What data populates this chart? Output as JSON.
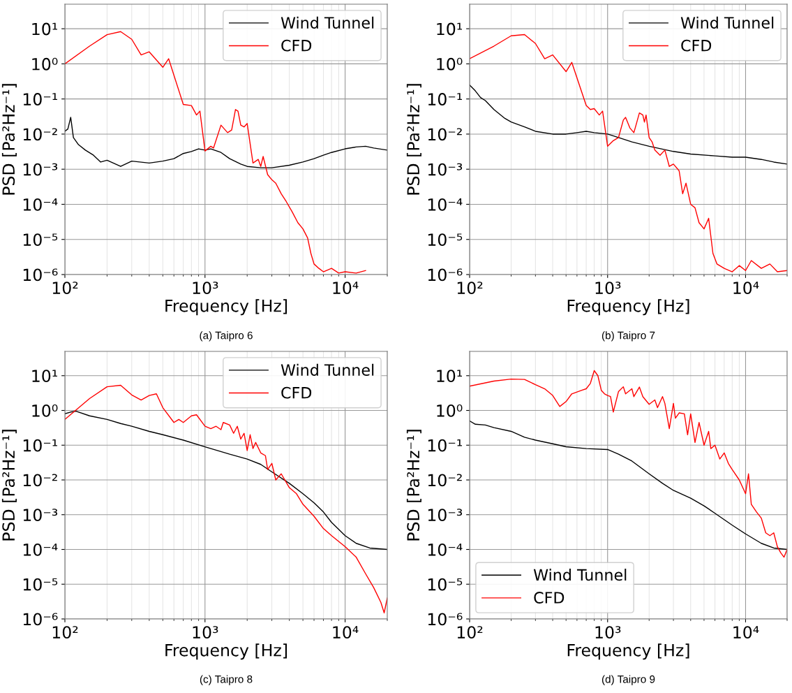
{
  "chart_data": [
    {
      "type": "line",
      "title": "(a) Taipro 6",
      "xlabel": "Frequency [Hz]",
      "ylabel": "PSD [Pa²Hz⁻¹]",
      "log": "xy",
      "grid": true,
      "legend": "top right",
      "xlim": [
        100,
        20000
      ],
      "ylim": [
        1e-06,
        50
      ],
      "xticks": [
        {
          "value": 100,
          "label": "10²"
        },
        {
          "value": 1000,
          "label": "10³"
        },
        {
          "value": 10000,
          "label": "10⁴"
        }
      ],
      "yticks": [
        {
          "value": 1e-06,
          "label": "10⁻⁶"
        },
        {
          "value": 1e-05,
          "label": "10⁻⁵"
        },
        {
          "value": 0.0001,
          "label": "10⁻⁴"
        },
        {
          "value": 0.001,
          "label": "10⁻³"
        },
        {
          "value": 0.01,
          "label": "10⁻²"
        },
        {
          "value": 0.1,
          "label": "10⁻¹"
        },
        {
          "value": 1,
          "label": "10⁰"
        },
        {
          "value": 10,
          "label": "10¹"
        }
      ],
      "series": [
        {
          "name": "Wind Tunnel",
          "color": "#000000",
          "x": [
            100,
            105,
            110,
            115,
            125,
            140,
            160,
            180,
            200,
            250,
            300,
            400,
            500,
            600,
            700,
            800,
            900,
            1000,
            1100,
            1300,
            1500,
            1800,
            2000,
            2500,
            3000,
            4000,
            5000,
            6000,
            7000,
            8000,
            10000,
            12000,
            14000,
            16000,
            20000
          ],
          "values": [
            0.012,
            0.014,
            0.03,
            0.008,
            0.005,
            0.0035,
            0.0025,
            0.0016,
            0.0018,
            0.0012,
            0.0017,
            0.0015,
            0.0017,
            0.002,
            0.0028,
            0.0032,
            0.0038,
            0.0035,
            0.0038,
            0.003,
            0.002,
            0.0014,
            0.0012,
            0.0011,
            0.0011,
            0.0013,
            0.0016,
            0.002,
            0.0025,
            0.003,
            0.0038,
            0.0043,
            0.0045,
            0.004,
            0.0035
          ]
        },
        {
          "name": "CFD",
          "color": "#ff0000",
          "x": [
            100,
            150,
            200,
            250,
            300,
            350,
            400,
            500,
            550,
            700,
            800,
            870,
            920,
            1000,
            1100,
            1150,
            1300,
            1450,
            1550,
            1650,
            1720,
            1800,
            1900,
            2000,
            2200,
            2400,
            2500,
            2600,
            2800,
            3000,
            3200,
            3500,
            3800,
            4200,
            4600,
            5000,
            5400,
            5700,
            6000,
            6500,
            7000,
            8000,
            9000,
            10000,
            12000,
            14000
          ],
          "values": [
            1.0,
            3.2,
            6.8,
            8.3,
            5,
            1.8,
            2.2,
            0.8,
            1.4,
            0.07,
            0.065,
            0.035,
            0.045,
            0.0033,
            0.0045,
            0.004,
            0.018,
            0.011,
            0.013,
            0.05,
            0.045,
            0.018,
            0.016,
            0.02,
            0.0015,
            0.0019,
            0.0012,
            0.0023,
            0.0007,
            0.0005,
            0.0004,
            0.0002,
            0.00012,
            6e-05,
            3e-05,
            2e-05,
            1.1e-05,
            4e-06,
            2e-06,
            1.5e-06,
            1.2e-06,
            1.5e-06,
            1.1e-06,
            1.2e-06,
            1.1e-06,
            1.3e-06
          ]
        }
      ]
    },
    {
      "type": "line",
      "title": "(b) Taipro 7",
      "xlabel": "Frequency [Hz]",
      "ylabel": "PSD [Pa²Hz⁻¹]",
      "log": "xy",
      "grid": true,
      "legend": "top right",
      "xlim": [
        100,
        20000
      ],
      "ylim": [
        1e-06,
        50
      ],
      "xticks": [
        {
          "value": 100,
          "label": "10²"
        },
        {
          "value": 1000,
          "label": "10³"
        },
        {
          "value": 10000,
          "label": "10⁴"
        }
      ],
      "yticks": [
        {
          "value": 1e-06,
          "label": "10⁻⁶"
        },
        {
          "value": 1e-05,
          "label": "10⁻⁵"
        },
        {
          "value": 0.0001,
          "label": "10⁻⁴"
        },
        {
          "value": 0.001,
          "label": "10⁻³"
        },
        {
          "value": 0.01,
          "label": "10⁻²"
        },
        {
          "value": 0.1,
          "label": "10⁻¹"
        },
        {
          "value": 1,
          "label": "10⁰"
        },
        {
          "value": 10,
          "label": "10¹"
        }
      ],
      "series": [
        {
          "name": "Wind Tunnel",
          "color": "#000000",
          "x": [
            100,
            110,
            120,
            130,
            150,
            180,
            200,
            250,
            300,
            400,
            500,
            600,
            700,
            800,
            1000,
            1200,
            1500,
            2000,
            3000,
            4000,
            6000,
            8000,
            10000,
            13000,
            16000,
            20000
          ],
          "values": [
            0.25,
            0.17,
            0.11,
            0.09,
            0.05,
            0.028,
            0.022,
            0.016,
            0.012,
            0.01,
            0.01,
            0.011,
            0.012,
            0.011,
            0.01,
            0.008,
            0.006,
            0.0045,
            0.0032,
            0.0027,
            0.0024,
            0.0022,
            0.0022,
            0.0019,
            0.0016,
            0.0014
          ]
        },
        {
          "name": "CFD",
          "color": "#ff0000",
          "x": [
            100,
            150,
            200,
            250,
            300,
            350,
            400,
            500,
            550,
            700,
            750,
            800,
            870,
            920,
            1000,
            1100,
            1200,
            1300,
            1350,
            1450,
            1550,
            1600,
            1700,
            1800,
            1850,
            1900,
            2000,
            2100,
            2200,
            2400,
            2600,
            2800,
            3000,
            3300,
            3500,
            3700,
            4000,
            4300,
            4600,
            5000,
            5400,
            5800,
            6200,
            7000,
            8000,
            9000,
            10000,
            11000,
            13000,
            15000,
            17000,
            20000
          ],
          "values": [
            1.4,
            3.2,
            6.3,
            6.8,
            3.8,
            1.4,
            1.8,
            0.6,
            1.1,
            0.065,
            0.05,
            0.053,
            0.035,
            0.045,
            0.0045,
            0.0065,
            0.008,
            0.025,
            0.03,
            0.015,
            0.011,
            0.017,
            0.04,
            0.035,
            0.022,
            0.035,
            0.008,
            0.006,
            0.0035,
            0.0025,
            0.0035,
            0.0012,
            0.0014,
            0.0009,
            0.0002,
            0.0004,
            0.0001,
            8e-05,
            3e-05,
            2e-05,
            4e-05,
            4e-06,
            2e-06,
            1.5e-06,
            1.2e-06,
            1.8e-06,
            1.3e-06,
            2.5e-06,
            1.5e-06,
            2e-06,
            1.2e-06,
            1.3e-06
          ]
        }
      ]
    },
    {
      "type": "line",
      "title": "(c) Taipro 8",
      "xlabel": "Frequency [Hz]",
      "ylabel": "PSD [Pa²Hz⁻¹]",
      "log": "xy",
      "grid": true,
      "legend": "top right",
      "xlim": [
        100,
        20000
      ],
      "ylim": [
        1e-06,
        50
      ],
      "xticks": [
        {
          "value": 100,
          "label": "10²"
        },
        {
          "value": 1000,
          "label": "10³"
        },
        {
          "value": 10000,
          "label": "10⁴"
        }
      ],
      "yticks": [
        {
          "value": 1e-06,
          "label": "10⁻⁶"
        },
        {
          "value": 1e-05,
          "label": "10⁻⁵"
        },
        {
          "value": 0.0001,
          "label": "10⁻⁴"
        },
        {
          "value": 0.001,
          "label": "10⁻³"
        },
        {
          "value": 0.01,
          "label": "10⁻²"
        },
        {
          "value": 0.1,
          "label": "10⁻¹"
        },
        {
          "value": 1,
          "label": "10⁰"
        },
        {
          "value": 10,
          "label": "10¹"
        }
      ],
      "series": [
        {
          "name": "Wind Tunnel",
          "color": "#000000",
          "x": [
            100,
            110,
            120,
            150,
            200,
            250,
            300,
            400,
            500,
            700,
            1000,
            1500,
            2000,
            2500,
            3000,
            4000,
            5000,
            6000,
            7000,
            8000,
            10000,
            12000,
            15000,
            20000
          ],
          "values": [
            0.8,
            0.9,
            0.95,
            0.7,
            0.55,
            0.42,
            0.35,
            0.25,
            0.2,
            0.14,
            0.09,
            0.055,
            0.04,
            0.028,
            0.017,
            0.008,
            0.004,
            0.0022,
            0.0012,
            0.0006,
            0.00025,
            0.00015,
            0.00011,
            0.0001
          ]
        },
        {
          "name": "CFD",
          "color": "#ff0000",
          "x": [
            100,
            150,
            200,
            250,
            300,
            350,
            400,
            450,
            500,
            600,
            650,
            700,
            800,
            870,
            1000,
            1100,
            1200,
            1300,
            1350,
            1500,
            1600,
            1700,
            1800,
            1900,
            2000,
            2100,
            2200,
            2300,
            2500,
            2700,
            2800,
            3000,
            3200,
            3500,
            4000,
            4500,
            5000,
            6000,
            7000,
            8000,
            10000,
            12000,
            14000,
            16000,
            18000,
            19000,
            20000
          ],
          "values": [
            0.55,
            2.2,
            4.8,
            5.3,
            2.8,
            2,
            2.7,
            3.0,
            1.2,
            0.45,
            0.55,
            0.45,
            0.7,
            0.75,
            0.35,
            0.3,
            0.35,
            0.28,
            0.45,
            0.38,
            0.22,
            0.35,
            0.15,
            0.22,
            0.07,
            0.2,
            0.08,
            0.12,
            0.06,
            0.05,
            0.02,
            0.03,
            0.01,
            0.015,
            0.006,
            0.004,
            0.002,
            0.0009,
            0.0004,
            0.00025,
            0.00012,
            6e-05,
            2e-05,
            8e-06,
            3e-06,
            1.5e-06,
            4e-06
          ]
        }
      ]
    },
    {
      "type": "line",
      "title": "(d) Taipro 9",
      "xlabel": "Frequency [Hz]",
      "ylabel": "PSD [Pa²Hz⁻¹]",
      "log": "xy",
      "grid": true,
      "legend": "bottom left",
      "xlim": [
        100,
        20000
      ],
      "ylim": [
        1e-06,
        50
      ],
      "xticks": [
        {
          "value": 100,
          "label": "10²"
        },
        {
          "value": 1000,
          "label": "10³"
        },
        {
          "value": 10000,
          "label": "10⁴"
        }
      ],
      "yticks": [
        {
          "value": 1e-06,
          "label": "10⁻⁶"
        },
        {
          "value": 1e-05,
          "label": "10⁻⁵"
        },
        {
          "value": 0.0001,
          "label": "10⁻⁴"
        },
        {
          "value": 0.001,
          "label": "10⁻³"
        },
        {
          "value": 0.01,
          "label": "10⁻²"
        },
        {
          "value": 0.1,
          "label": "10⁻¹"
        },
        {
          "value": 1,
          "label": "10⁰"
        },
        {
          "value": 10,
          "label": "10¹"
        }
      ],
      "series": [
        {
          "name": "Wind Tunnel",
          "color": "#000000",
          "x": [
            100,
            110,
            130,
            150,
            200,
            250,
            300,
            400,
            500,
            700,
            1000,
            1200,
            1500,
            2000,
            2500,
            3000,
            4000,
            5000,
            6000,
            8000,
            10000,
            13000,
            16000,
            20000
          ],
          "values": [
            0.5,
            0.4,
            0.38,
            0.32,
            0.25,
            0.17,
            0.14,
            0.11,
            0.09,
            0.08,
            0.075,
            0.055,
            0.035,
            0.015,
            0.008,
            0.005,
            0.003,
            0.0018,
            0.0011,
            0.0005,
            0.00028,
            0.00015,
            0.00011,
            0.0001
          ]
        },
        {
          "name": "CFD",
          "color": "#ff0000",
          "x": [
            100,
            150,
            200,
            250,
            300,
            350,
            400,
            450,
            500,
            550,
            650,
            700,
            750,
            800,
            850,
            900,
            950,
            1000,
            1050,
            1100,
            1200,
            1300,
            1350,
            1500,
            1550,
            1700,
            1800,
            2000,
            2200,
            2300,
            2500,
            2600,
            2800,
            3000,
            3100,
            3300,
            3600,
            3800,
            4000,
            4300,
            4600,
            5000,
            5400,
            5600,
            6000,
            6500,
            7000,
            7500,
            8000,
            9000,
            10000,
            10500,
            11000,
            12000,
            13000,
            14000,
            15000,
            16000,
            17000,
            18000,
            19000,
            20000
          ],
          "values": [
            5,
            7,
            8,
            7.8,
            5.5,
            4.2,
            2.7,
            1.3,
            1.8,
            3,
            3.8,
            4.2,
            6,
            14,
            10,
            3.8,
            3,
            2.7,
            2.5,
            0.9,
            3.5,
            4.8,
            3,
            4.2,
            2.5,
            4.7,
            2.5,
            1.5,
            2,
            1.2,
            2.5,
            1.6,
            0.3,
            1.6,
            0.6,
            0.85,
            0.8,
            0.2,
            0.8,
            0.12,
            0.45,
            0.1,
            0.25,
            0.08,
            0.1,
            0.04,
            0.06,
            0.03,
            0.02,
            0.01,
            0.004,
            0.015,
            0.002,
            0.0012,
            0.0008,
            0.0003,
            0.00025,
            0.0003,
            0.00012,
            8e-05,
            6e-05,
            0.0001
          ]
        }
      ]
    }
  ]
}
